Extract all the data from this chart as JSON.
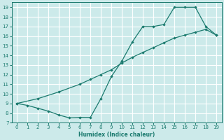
{
  "xlabel": "Humidex (Indice chaleur)",
  "bg_color": "#cceaea",
  "grid_color": "#ffffff",
  "line_color": "#1a7a6e",
  "xlim": [
    -0.5,
    19.5
  ],
  "ylim": [
    7,
    19.5
  ],
  "xticks": [
    0,
    1,
    2,
    3,
    4,
    5,
    6,
    7,
    8,
    9,
    10,
    11,
    12,
    13,
    14,
    15,
    16,
    17,
    18,
    19
  ],
  "yticks": [
    7,
    8,
    9,
    10,
    11,
    12,
    13,
    14,
    15,
    16,
    17,
    18,
    19
  ],
  "upper_x": [
    0,
    1,
    2,
    3,
    4,
    5,
    6,
    7,
    8,
    9,
    10,
    11,
    12,
    13,
    14,
    15,
    16,
    17,
    18,
    19
  ],
  "upper_y": [
    9,
    8.8,
    8.5,
    8.2,
    7.8,
    7.5,
    7.55,
    7.55,
    9.5,
    11.8,
    13.4,
    15.4,
    17.0,
    17.0,
    17.2,
    19.0,
    19.0,
    19.0,
    17.0,
    16.1
  ],
  "lower_x": [
    0,
    2,
    4,
    6,
    7,
    8,
    9,
    10,
    11,
    12,
    13,
    14,
    15,
    16,
    17,
    18,
    19
  ],
  "lower_y": [
    9,
    9.5,
    10.2,
    11.0,
    11.5,
    12.0,
    12.5,
    13.2,
    13.8,
    14.3,
    14.8,
    15.3,
    15.8,
    16.1,
    16.4,
    16.7,
    16.1
  ]
}
